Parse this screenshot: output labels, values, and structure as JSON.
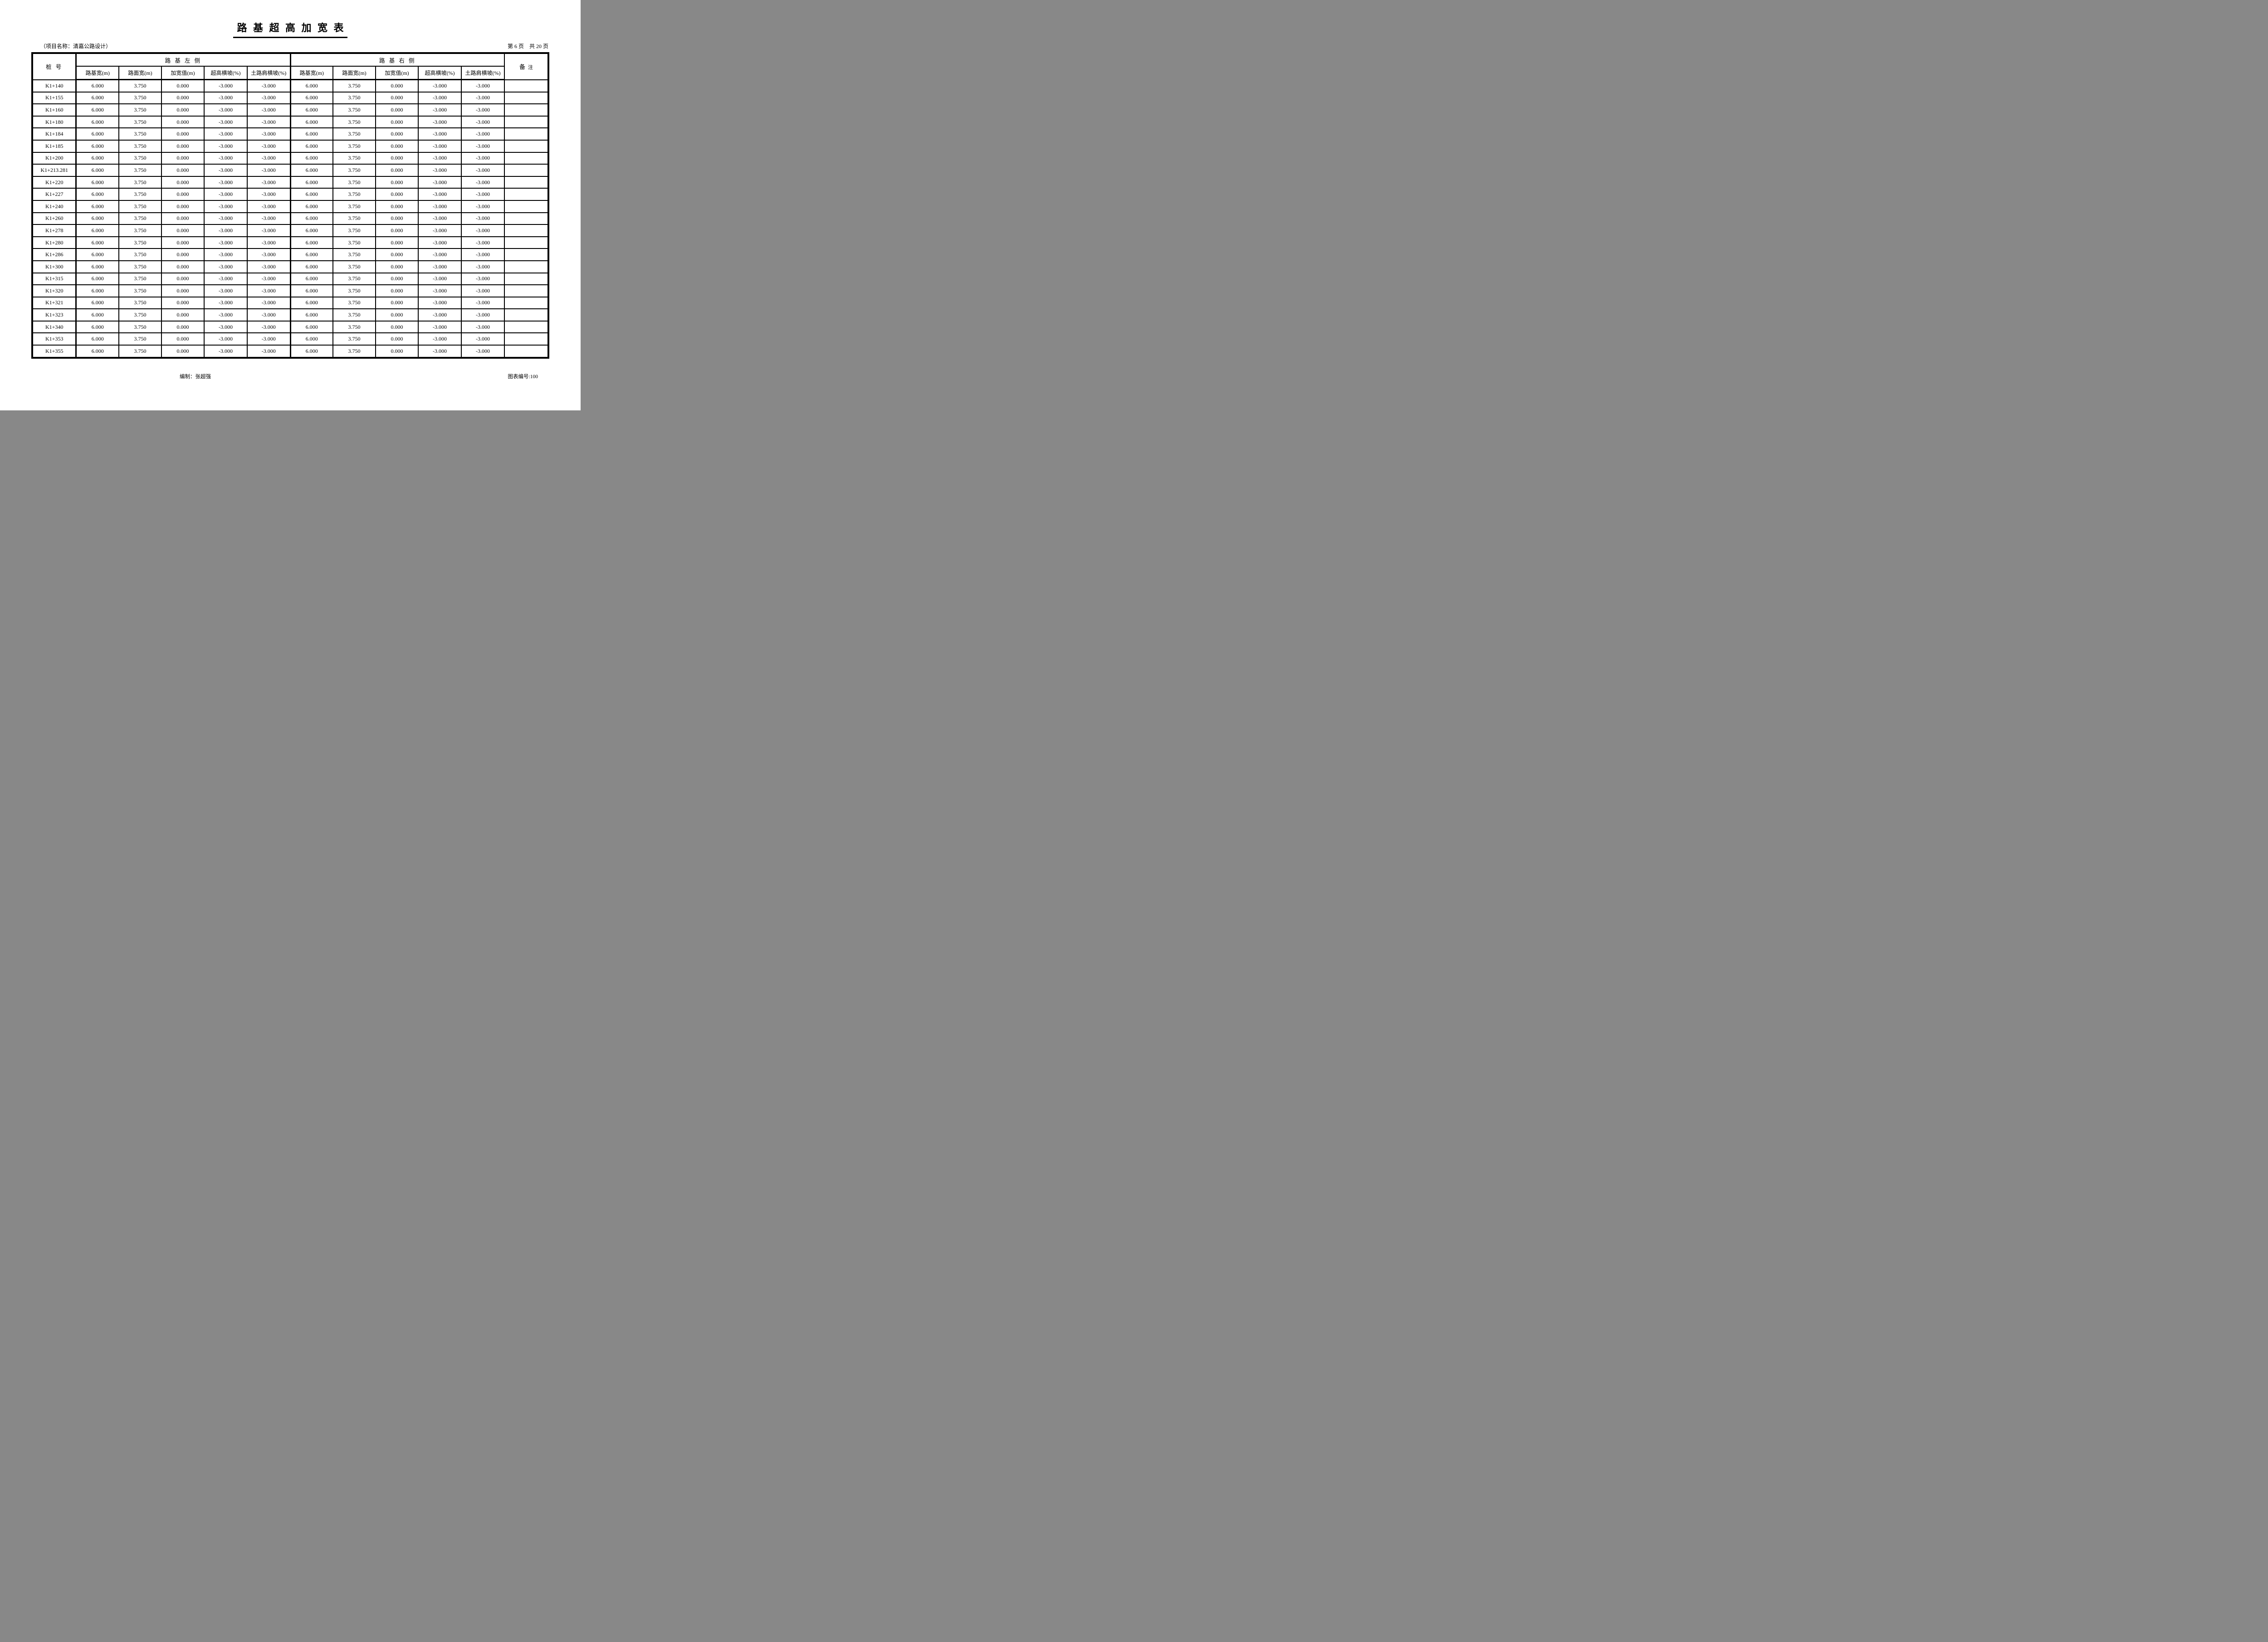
{
  "page": {
    "title": "路 基 超 高 加 宽 表",
    "project_label": "（项目名称：清嘉公路设计）",
    "page_info": "第 6 页    共 20 页",
    "footer_left": "编制：张超强",
    "footer_right": "图表编号:100"
  },
  "table": {
    "pile_header": "桩  号",
    "left_group": "路  基  左  侧",
    "right_group": "路  基  右  侧",
    "remarks_header_main": "备",
    "remarks_header_sub": "注",
    "sub_headers": [
      "路基宽(m)",
      "路面宽(m)",
      "加宽值(m)",
      "超高横坡(%)",
      "土路肩横坡(%)"
    ],
    "rows": [
      {
        "pile": "K1+140",
        "left": [
          "6.000",
          "3.750",
          "0.000",
          "-3.000",
          "-3.000"
        ],
        "right": [
          "6.000",
          "3.750",
          "0.000",
          "-3.000",
          "-3.000"
        ],
        "remark": ""
      },
      {
        "pile": "K1+155",
        "left": [
          "6.000",
          "3.750",
          "0.000",
          "-3.000",
          "-3.000"
        ],
        "right": [
          "6.000",
          "3.750",
          "0.000",
          "-3.000",
          "-3.000"
        ],
        "remark": ""
      },
      {
        "pile": "K1+160",
        "left": [
          "6.000",
          "3.750",
          "0.000",
          "-3.000",
          "-3.000"
        ],
        "right": [
          "6.000",
          "3.750",
          "0.000",
          "-3.000",
          "-3.000"
        ],
        "remark": ""
      },
      {
        "pile": "K1+180",
        "left": [
          "6.000",
          "3.750",
          "0.000",
          "-3.000",
          "-3.000"
        ],
        "right": [
          "6.000",
          "3.750",
          "0.000",
          "-3.000",
          "-3.000"
        ],
        "remark": ""
      },
      {
        "pile": "K1+184",
        "left": [
          "6.000",
          "3.750",
          "0.000",
          "-3.000",
          "-3.000"
        ],
        "right": [
          "6.000",
          "3.750",
          "0.000",
          "-3.000",
          "-3.000"
        ],
        "remark": ""
      },
      {
        "pile": "K1+185",
        "left": [
          "6.000",
          "3.750",
          "0.000",
          "-3.000",
          "-3.000"
        ],
        "right": [
          "6.000",
          "3.750",
          "0.000",
          "-3.000",
          "-3.000"
        ],
        "remark": ""
      },
      {
        "pile": "K1+200",
        "left": [
          "6.000",
          "3.750",
          "0.000",
          "-3.000",
          "-3.000"
        ],
        "right": [
          "6.000",
          "3.750",
          "0.000",
          "-3.000",
          "-3.000"
        ],
        "remark": ""
      },
      {
        "pile": "K1+213.281",
        "left": [
          "6.000",
          "3.750",
          "0.000",
          "-3.000",
          "-3.000"
        ],
        "right": [
          "6.000",
          "3.750",
          "0.000",
          "-3.000",
          "-3.000"
        ],
        "remark": ""
      },
      {
        "pile": "K1+220",
        "left": [
          "6.000",
          "3.750",
          "0.000",
          "-3.000",
          "-3.000"
        ],
        "right": [
          "6.000",
          "3.750",
          "0.000",
          "-3.000",
          "-3.000"
        ],
        "remark": ""
      },
      {
        "pile": "K1+227",
        "left": [
          "6.000",
          "3.750",
          "0.000",
          "-3.000",
          "-3.000"
        ],
        "right": [
          "6.000",
          "3.750",
          "0.000",
          "-3.000",
          "-3.000"
        ],
        "remark": ""
      },
      {
        "pile": "K1+240",
        "left": [
          "6.000",
          "3.750",
          "0.000",
          "-3.000",
          "-3.000"
        ],
        "right": [
          "6.000",
          "3.750",
          "0.000",
          "-3.000",
          "-3.000"
        ],
        "remark": ""
      },
      {
        "pile": "K1+260",
        "left": [
          "6.000",
          "3.750",
          "0.000",
          "-3.000",
          "-3.000"
        ],
        "right": [
          "6.000",
          "3.750",
          "0.000",
          "-3.000",
          "-3.000"
        ],
        "remark": ""
      },
      {
        "pile": "K1+278",
        "left": [
          "6.000",
          "3.750",
          "0.000",
          "-3.000",
          "-3.000"
        ],
        "right": [
          "6.000",
          "3.750",
          "0.000",
          "-3.000",
          "-3.000"
        ],
        "remark": ""
      },
      {
        "pile": "K1+280",
        "left": [
          "6.000",
          "3.750",
          "0.000",
          "-3.000",
          "-3.000"
        ],
        "right": [
          "6.000",
          "3.750",
          "0.000",
          "-3.000",
          "-3.000"
        ],
        "remark": ""
      },
      {
        "pile": "K1+286",
        "left": [
          "6.000",
          "3.750",
          "0.000",
          "-3.000",
          "-3.000"
        ],
        "right": [
          "6.000",
          "3.750",
          "0.000",
          "-3.000",
          "-3.000"
        ],
        "remark": ""
      },
      {
        "pile": "K1+300",
        "left": [
          "6.000",
          "3.750",
          "0.000",
          "-3.000",
          "-3.000"
        ],
        "right": [
          "6.000",
          "3.750",
          "0.000",
          "-3.000",
          "-3.000"
        ],
        "remark": ""
      },
      {
        "pile": "K1+315",
        "left": [
          "6.000",
          "3.750",
          "0.000",
          "-3.000",
          "-3.000"
        ],
        "right": [
          "6.000",
          "3.750",
          "0.000",
          "-3.000",
          "-3.000"
        ],
        "remark": ""
      },
      {
        "pile": "K1+320",
        "left": [
          "6.000",
          "3.750",
          "0.000",
          "-3.000",
          "-3.000"
        ],
        "right": [
          "6.000",
          "3.750",
          "0.000",
          "-3.000",
          "-3.000"
        ],
        "remark": ""
      },
      {
        "pile": "K1+321",
        "left": [
          "6.000",
          "3.750",
          "0.000",
          "-3.000",
          "-3.000"
        ],
        "right": [
          "6.000",
          "3.750",
          "0.000",
          "-3.000",
          "-3.000"
        ],
        "remark": ""
      },
      {
        "pile": "K1+323",
        "left": [
          "6.000",
          "3.750",
          "0.000",
          "-3.000",
          "-3.000"
        ],
        "right": [
          "6.000",
          "3.750",
          "0.000",
          "-3.000",
          "-3.000"
        ],
        "remark": ""
      },
      {
        "pile": "K1+340",
        "left": [
          "6.000",
          "3.750",
          "0.000",
          "-3.000",
          "-3.000"
        ],
        "right": [
          "6.000",
          "3.750",
          "0.000",
          "-3.000",
          "-3.000"
        ],
        "remark": ""
      },
      {
        "pile": "K1+353",
        "left": [
          "6.000",
          "3.750",
          "0.000",
          "-3.000",
          "-3.000"
        ],
        "right": [
          "6.000",
          "3.750",
          "0.000",
          "-3.000",
          "-3.000"
        ],
        "remark": ""
      },
      {
        "pile": "K1+355",
        "left": [
          "6.000",
          "3.750",
          "0.000",
          "-3.000",
          "-3.000"
        ],
        "right": [
          "6.000",
          "3.750",
          "0.000",
          "-3.000",
          "-3.000"
        ],
        "remark": ""
      }
    ]
  }
}
